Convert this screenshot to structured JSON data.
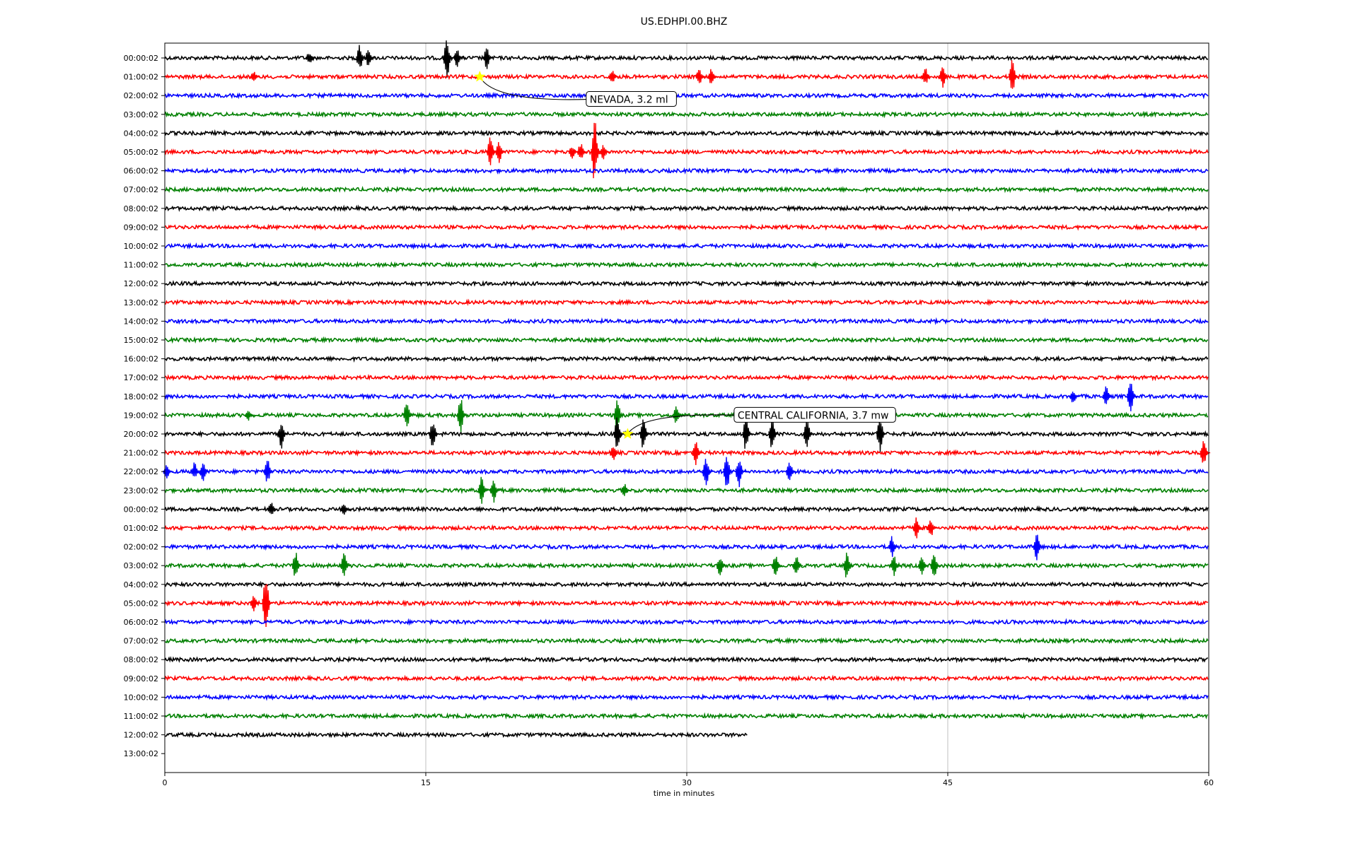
{
  "chart_data": {
    "type": "line",
    "title": "US.EDHPI.00.BHZ",
    "xlabel": "time in minutes",
    "xlim": [
      0,
      60
    ],
    "xticks": [
      "0",
      "15",
      "30",
      "45",
      "60"
    ],
    "xtick_values": [
      0,
      15,
      30,
      45,
      60
    ],
    "grid": "vertical",
    "trace_colors": [
      "#000000",
      "#ff0000",
      "#0000ff",
      "#008000"
    ],
    "row_labels": [
      "00:00:02",
      "01:00:02",
      "02:00:02",
      "03:00:02",
      "04:00:02",
      "05:00:02",
      "06:00:02",
      "07:00:02",
      "08:00:02",
      "09:00:02",
      "10:00:02",
      "11:00:02",
      "12:00:02",
      "13:00:02",
      "14:00:02",
      "15:00:02",
      "16:00:02",
      "17:00:02",
      "18:00:02",
      "19:00:02",
      "20:00:02",
      "21:00:02",
      "22:00:02",
      "23:00:02",
      "00:00:02",
      "01:00:02",
      "02:00:02",
      "03:00:02",
      "04:00:02",
      "05:00:02",
      "06:00:02",
      "07:00:02",
      "08:00:02",
      "09:00:02",
      "10:00:02",
      "11:00:02",
      "12:00:02",
      "13:00:02"
    ],
    "trace_end_minutes": [
      60,
      60,
      60,
      60,
      60,
      60,
      60,
      60,
      60,
      60,
      60,
      60,
      60,
      60,
      60,
      60,
      60,
      60,
      60,
      60,
      60,
      60,
      60,
      60,
      60,
      60,
      60,
      60,
      60,
      60,
      60,
      60,
      60,
      60,
      60,
      60,
      33.5,
      0
    ],
    "spikes": [
      {
        "row": 0,
        "t": 8.4,
        "amp": 0.4
      },
      {
        "row": 0,
        "t": 11.3,
        "amp": 0.8
      },
      {
        "row": 0,
        "t": 11.8,
        "amp": 0.5
      },
      {
        "row": 0,
        "t": 16.3,
        "amp": 1.3
      },
      {
        "row": 0,
        "t": 16.9,
        "amp": 0.5
      },
      {
        "row": 0,
        "t": 18.6,
        "amp": 0.6
      },
      {
        "row": 1,
        "t": 5.2,
        "amp": 0.3
      },
      {
        "row": 1,
        "t": 25.8,
        "amp": 0.4
      },
      {
        "row": 1,
        "t": 30.8,
        "amp": 0.5
      },
      {
        "row": 1,
        "t": 31.5,
        "amp": 0.5
      },
      {
        "row": 1,
        "t": 43.8,
        "amp": 0.5
      },
      {
        "row": 1,
        "t": 44.8,
        "amp": 0.6
      },
      {
        "row": 1,
        "t": 48.8,
        "amp": 1.0
      },
      {
        "row": 5,
        "t": 18.8,
        "amp": 0.9
      },
      {
        "row": 5,
        "t": 19.3,
        "amp": 0.6
      },
      {
        "row": 5,
        "t": 23.5,
        "amp": 0.4
      },
      {
        "row": 5,
        "t": 24.0,
        "amp": 0.5
      },
      {
        "row": 5,
        "t": 24.8,
        "amp": 1.8
      },
      {
        "row": 5,
        "t": 25.3,
        "amp": 0.4
      },
      {
        "row": 18,
        "t": 52.3,
        "amp": 0.4
      },
      {
        "row": 18,
        "t": 54.2,
        "amp": 0.6
      },
      {
        "row": 18,
        "t": 55.6,
        "amp": 1.1
      },
      {
        "row": 19,
        "t": 4.9,
        "amp": 0.3
      },
      {
        "row": 19,
        "t": 14.0,
        "amp": 0.8
      },
      {
        "row": 19,
        "t": 17.1,
        "amp": 1.0
      },
      {
        "row": 19,
        "t": 26.1,
        "amp": 1.0
      },
      {
        "row": 19,
        "t": 29.5,
        "amp": 0.6
      },
      {
        "row": 20,
        "t": 6.8,
        "amp": 0.8
      },
      {
        "row": 20,
        "t": 15.5,
        "amp": 0.8
      },
      {
        "row": 20,
        "t": 26.1,
        "amp": 1.0
      },
      {
        "row": 20,
        "t": 27.6,
        "amp": 0.9
      },
      {
        "row": 20,
        "t": 33.5,
        "amp": 1.0
      },
      {
        "row": 20,
        "t": 35.0,
        "amp": 1.0
      },
      {
        "row": 20,
        "t": 37.0,
        "amp": 0.9
      },
      {
        "row": 20,
        "t": 41.2,
        "amp": 1.0
      },
      {
        "row": 21,
        "t": 25.9,
        "amp": 0.5
      },
      {
        "row": 21,
        "t": 30.6,
        "amp": 0.7
      },
      {
        "row": 21,
        "t": 59.8,
        "amp": 0.8
      },
      {
        "row": 22,
        "t": 0.2,
        "amp": 0.4
      },
      {
        "row": 22,
        "t": 1.8,
        "amp": 0.5
      },
      {
        "row": 22,
        "t": 2.3,
        "amp": 0.6
      },
      {
        "row": 22,
        "t": 6.0,
        "amp": 0.7
      },
      {
        "row": 22,
        "t": 31.2,
        "amp": 0.8
      },
      {
        "row": 22,
        "t": 32.4,
        "amp": 1.1
      },
      {
        "row": 22,
        "t": 33.1,
        "amp": 0.9
      },
      {
        "row": 22,
        "t": 36.0,
        "amp": 0.6
      },
      {
        "row": 23,
        "t": 18.3,
        "amp": 0.8
      },
      {
        "row": 23,
        "t": 19.0,
        "amp": 0.7
      },
      {
        "row": 23,
        "t": 26.5,
        "amp": 0.4
      },
      {
        "row": 24,
        "t": 6.2,
        "amp": 0.4
      },
      {
        "row": 24,
        "t": 10.4,
        "amp": 0.4
      },
      {
        "row": 25,
        "t": 43.3,
        "amp": 0.6
      },
      {
        "row": 25,
        "t": 44.1,
        "amp": 0.6
      },
      {
        "row": 26,
        "t": 41.9,
        "amp": 0.6
      },
      {
        "row": 26,
        "t": 50.2,
        "amp": 0.8
      },
      {
        "row": 27,
        "t": 7.6,
        "amp": 0.8
      },
      {
        "row": 27,
        "t": 10.4,
        "amp": 0.7
      },
      {
        "row": 27,
        "t": 32.0,
        "amp": 0.6
      },
      {
        "row": 27,
        "t": 35.2,
        "amp": 0.6
      },
      {
        "row": 27,
        "t": 36.4,
        "amp": 0.6
      },
      {
        "row": 27,
        "t": 39.3,
        "amp": 0.8
      },
      {
        "row": 27,
        "t": 42.0,
        "amp": 0.6
      },
      {
        "row": 27,
        "t": 43.6,
        "amp": 0.6
      },
      {
        "row": 27,
        "t": 44.3,
        "amp": 0.8
      },
      {
        "row": 29,
        "t": 5.2,
        "amp": 0.5
      },
      {
        "row": 29,
        "t": 5.9,
        "amp": 1.7
      }
    ],
    "annotations": [
      {
        "text": "NEVADA, 3.2 ml",
        "row": 1,
        "t": 18.1,
        "label_row": 2.2,
        "label_t": 24.3
      },
      {
        "text": "CENTRAL CALIFORNIA, 3.7 mw",
        "row": 20,
        "t": 26.6,
        "label_row": 19.0,
        "label_t": 32.8
      }
    ],
    "marker_color": "#ffff00"
  }
}
